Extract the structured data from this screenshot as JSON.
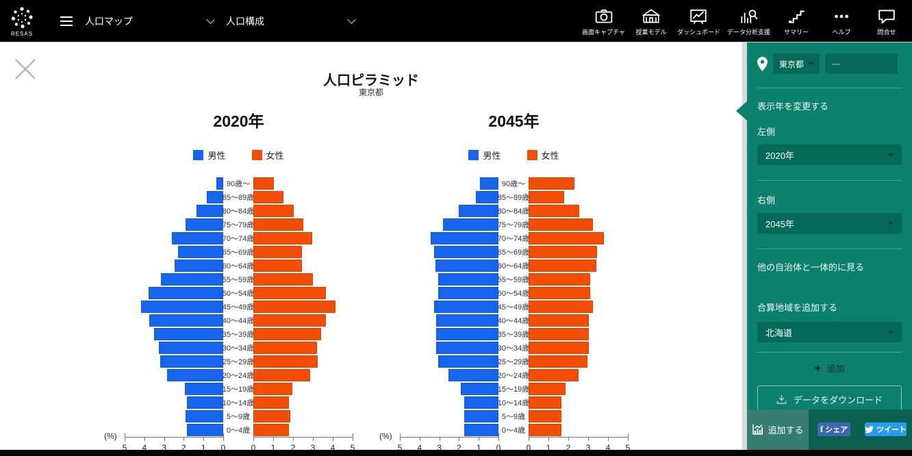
{
  "navbar": {
    "brand": "RESAS",
    "menus": [
      {
        "label": "人口マップ"
      },
      {
        "label": "人口構成"
      }
    ],
    "tools": [
      {
        "label": "画面キャプチャ"
      },
      {
        "label": "授業モデル"
      },
      {
        "label": "ダッシュボード"
      },
      {
        "label": "データ分析支援"
      },
      {
        "label": "サマリー"
      },
      {
        "label": "ヘルプ"
      },
      {
        "label": "問合せ"
      }
    ]
  },
  "page": {
    "title": "人口ピラミッド",
    "subtitle": "東京都"
  },
  "sidebar": {
    "prefecture_select": "東京都",
    "municipality_select": "---",
    "section_display_year": "表示年を変更する",
    "left_label": "左側",
    "left_year": "2020年",
    "right_label": "右側",
    "right_year": "2045年",
    "section_other_municipality": "他の自治体と一体的に見る",
    "section_combine_region": "合算地域を追加する",
    "combine_region": "北海道",
    "add_link": "追加",
    "download_button": "データをダウンロード",
    "add_chart_button": "追加する",
    "share_button": "シェア",
    "tweet_button": "ツイート"
  },
  "chart_data": {
    "type": "bar",
    "subtype": "population-pyramid-pair",
    "title": "人口ピラミッド",
    "region": "東京都",
    "unit_label": "(%)",
    "xlim": [
      0,
      5
    ],
    "ticks_left": [
      5,
      4,
      3,
      2,
      1,
      0
    ],
    "ticks_right": [
      0,
      1,
      2,
      3,
      4,
      5
    ],
    "legend": [
      {
        "label": "男性",
        "color": "#1565ef"
      },
      {
        "label": "女性",
        "color": "#f44d05"
      }
    ],
    "age_groups_top_to_bottom": [
      "90歳〜",
      "85〜89歳",
      "80〜84歳",
      "75〜79歳",
      "70〜74歳",
      "65〜69歳",
      "60〜64歳",
      "55〜59歳",
      "50〜54歳",
      "45〜49歳",
      "40〜44歳",
      "35〜39歳",
      "30〜34歳",
      "25〜29歳",
      "20〜24歳",
      "15〜19歳",
      "10〜14歳",
      "5〜9歳",
      "0〜4歳"
    ],
    "charts": [
      {
        "title": "2020年",
        "male": [
          0.35,
          0.85,
          1.35,
          1.9,
          2.6,
          2.3,
          2.45,
          3.15,
          3.8,
          4.15,
          3.75,
          3.5,
          3.25,
          3.2,
          2.85,
          1.95,
          1.85,
          1.9,
          1.85
        ],
        "female": [
          1.05,
          1.5,
          2.05,
          2.5,
          2.95,
          2.45,
          2.45,
          3.0,
          3.65,
          4.15,
          3.65,
          3.4,
          3.2,
          3.25,
          2.85,
          1.95,
          1.8,
          1.85,
          1.8
        ]
      },
      {
        "title": "2045年",
        "male": [
          0.95,
          1.15,
          2.0,
          2.8,
          3.45,
          3.25,
          3.2,
          3.05,
          3.05,
          3.25,
          3.15,
          3.15,
          3.15,
          3.05,
          2.55,
          1.9,
          1.75,
          1.75,
          1.75
        ],
        "female": [
          2.3,
          1.8,
          2.55,
          3.25,
          3.8,
          3.45,
          3.4,
          3.1,
          3.1,
          3.25,
          3.05,
          3.05,
          3.05,
          2.95,
          2.5,
          1.85,
          1.65,
          1.65,
          1.65
        ]
      }
    ]
  }
}
